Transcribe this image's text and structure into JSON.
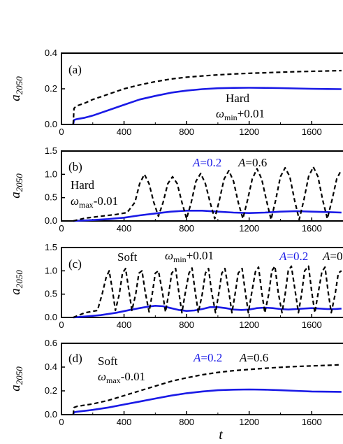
{
  "figure": {
    "x_label": "t"
  },
  "chart_data": [
    {
      "type": "line",
      "panel_label": "(a)",
      "ylabel": "a",
      "ylabel_sub": "2050",
      "xlim": [
        0,
        1800
      ],
      "ylim": [
        0,
        0.4
      ],
      "xticks": [
        "0",
        "400",
        "800",
        "1200",
        "1600"
      ],
      "yticks": [
        "0.0",
        "0.2",
        "0.4"
      ],
      "annotations": [
        "Hard",
        "ω",
        "min",
        "+0.01"
      ],
      "series": [
        {
          "name": "",
          "color": "#1a1ae6",
          "dash": "solid",
          "x": [
            75,
            80,
            90,
            100,
            150,
            200,
            300,
            400,
            500,
            600,
            700,
            800,
            900,
            1000,
            1100,
            1200,
            1300,
            1400,
            1500,
            1600,
            1700,
            1790
          ],
          "y": [
            0.0,
            0.025,
            0.028,
            0.03,
            0.038,
            0.05,
            0.08,
            0.11,
            0.14,
            0.16,
            0.178,
            0.19,
            0.198,
            0.203,
            0.205,
            0.206,
            0.205,
            0.204,
            0.202,
            0.2,
            0.199,
            0.198
          ]
        },
        {
          "name": "",
          "color": "#000000",
          "dash": "dashed",
          "x": [
            75,
            80,
            90,
            100,
            150,
            200,
            300,
            400,
            500,
            600,
            700,
            800,
            900,
            1000,
            1100,
            1200,
            1300,
            1400,
            1500,
            1600,
            1700,
            1790
          ],
          "y": [
            0.0,
            0.09,
            0.1,
            0.105,
            0.12,
            0.14,
            0.17,
            0.2,
            0.222,
            0.24,
            0.255,
            0.265,
            0.272,
            0.278,
            0.283,
            0.287,
            0.29,
            0.293,
            0.296,
            0.298,
            0.3,
            0.302
          ]
        }
      ]
    },
    {
      "type": "line",
      "panel_label": "(b)",
      "ylabel": "a",
      "ylabel_sub": "2050",
      "xlim": [
        0,
        1800
      ],
      "ylim": [
        0,
        1.5
      ],
      "xticks": [
        "0",
        "400",
        "800",
        "1200",
        "1600"
      ],
      "yticks": [
        "0.0",
        "0.5",
        "1.0",
        "1.5"
      ],
      "annotations": [
        "Hard",
        "ω",
        "max",
        "-0.01",
        "A",
        "=0.2",
        "A",
        "=0.6"
      ],
      "series": [
        {
          "name": "A=0.2",
          "color": "#1a1ae6",
          "dash": "solid",
          "x": [
            75,
            200,
            300,
            400,
            500,
            600,
            700,
            800,
            900,
            1000,
            1100,
            1200,
            1300,
            1400,
            1500,
            1600,
            1700,
            1790
          ],
          "y": [
            0.0,
            0.02,
            0.04,
            0.07,
            0.12,
            0.16,
            0.2,
            0.22,
            0.22,
            0.2,
            0.18,
            0.17,
            0.18,
            0.2,
            0.21,
            0.2,
            0.19,
            0.18
          ]
        },
        {
          "name": "A=0.6",
          "color": "#000000",
          "dash": "dashed",
          "x": [
            75,
            150,
            250,
            350,
            420,
            470,
            500,
            530,
            560,
            590,
            620,
            650,
            680,
            710,
            740,
            770,
            800,
            830,
            860,
            890,
            920,
            950,
            980,
            1010,
            1040,
            1070,
            1100,
            1130,
            1160,
            1190,
            1220,
            1250,
            1280,
            1310,
            1340,
            1370,
            1400,
            1430,
            1460,
            1490,
            1520,
            1550,
            1580,
            1610,
            1640,
            1670,
            1700,
            1730,
            1760,
            1790
          ],
          "y": [
            0.0,
            0.06,
            0.1,
            0.14,
            0.18,
            0.4,
            0.8,
            1.0,
            0.8,
            0.4,
            0.1,
            0.4,
            0.8,
            0.95,
            0.8,
            0.4,
            0.05,
            0.4,
            0.85,
            1.02,
            0.8,
            0.4,
            0.05,
            0.45,
            0.9,
            1.08,
            0.85,
            0.4,
            0.05,
            0.45,
            0.9,
            1.12,
            0.9,
            0.45,
            0.03,
            0.45,
            0.95,
            1.14,
            0.95,
            0.45,
            0.03,
            0.45,
            0.95,
            1.16,
            0.95,
            0.45,
            0.05,
            0.45,
            0.9,
            1.1
          ]
        }
      ]
    },
    {
      "type": "line",
      "panel_label": "(c)",
      "ylabel": "a",
      "ylabel_sub": "2050",
      "xlim": [
        0,
        1800
      ],
      "ylim": [
        0,
        1.5
      ],
      "xticks": [
        "0",
        "400",
        "800",
        "1200",
        "1600"
      ],
      "yticks": [
        "0.0",
        "0.5",
        "1.0",
        "1.5"
      ],
      "annotations": [
        "Soft",
        "ω",
        "min",
        "+0.01",
        "A",
        "=0.2",
        "A",
        "=0"
      ],
      "series": [
        {
          "name": "A=0.2",
          "color": "#1a1ae6",
          "dash": "solid",
          "x": [
            75,
            150,
            250,
            350,
            450,
            550,
            600,
            650,
            700,
            750,
            800,
            850,
            900,
            950,
            1000,
            1050,
            1100,
            1150,
            1200,
            1250,
            1300,
            1350,
            1400,
            1450,
            1500,
            1550,
            1600,
            1650,
            1700,
            1750,
            1790
          ],
          "y": [
            0.0,
            0.02,
            0.05,
            0.1,
            0.17,
            0.23,
            0.25,
            0.24,
            0.2,
            0.16,
            0.14,
            0.15,
            0.18,
            0.22,
            0.22,
            0.2,
            0.17,
            0.16,
            0.17,
            0.2,
            0.21,
            0.2,
            0.18,
            0.17,
            0.18,
            0.19,
            0.2,
            0.19,
            0.18,
            0.18,
            0.19
          ]
        },
        {
          "name": "A=0",
          "color": "#000000",
          "dash": "dashed",
          "x": [
            75,
            150,
            230,
            260,
            285,
            305,
            325,
            345,
            370,
            390,
            410,
            430,
            450,
            475,
            495,
            515,
            535,
            560,
            580,
            600,
            620,
            645,
            665,
            685,
            705,
            730,
            750,
            770,
            790,
            815,
            835,
            855,
            875,
            900,
            920,
            940,
            960,
            985,
            1005,
            1025,
            1045,
            1070,
            1090,
            1110,
            1130,
            1155,
            1175,
            1195,
            1215,
            1240,
            1260,
            1280,
            1300,
            1325,
            1345,
            1365,
            1385,
            1410,
            1430,
            1450,
            1470,
            1495,
            1515,
            1535,
            1555,
            1580,
            1600,
            1620,
            1640,
            1665,
            1685,
            1705,
            1725,
            1750,
            1770,
            1790
          ],
          "y": [
            0.0,
            0.1,
            0.15,
            0.5,
            0.85,
            1.0,
            0.6,
            0.15,
            0.5,
            0.95,
            1.05,
            0.6,
            0.15,
            0.5,
            0.95,
            1.0,
            0.55,
            0.12,
            0.5,
            0.95,
            1.0,
            0.55,
            0.12,
            0.5,
            0.95,
            1.05,
            0.55,
            0.1,
            0.5,
            0.95,
            1.06,
            0.55,
            0.1,
            0.5,
            0.95,
            1.05,
            0.55,
            0.1,
            0.5,
            0.95,
            1.05,
            0.55,
            0.1,
            0.5,
            0.95,
            1.05,
            0.55,
            0.1,
            0.5,
            0.98,
            1.08,
            0.55,
            0.1,
            0.5,
            1.0,
            1.1,
            0.55,
            0.1,
            0.5,
            1.0,
            1.1,
            0.55,
            0.1,
            0.5,
            1.0,
            1.1,
            0.55,
            0.1,
            0.5,
            0.98,
            1.08,
            0.55,
            0.1,
            0.5,
            0.95,
            1.0
          ]
        }
      ]
    },
    {
      "type": "line",
      "panel_label": "(d)",
      "ylabel": "a",
      "ylabel_sub": "2050",
      "xlim": [
        0,
        1800
      ],
      "ylim": [
        0,
        0.6
      ],
      "xticks": [
        "0",
        "400",
        "800",
        "1200",
        "1600"
      ],
      "yticks": [
        "0.0",
        "0.2",
        "0.4",
        "0.6"
      ],
      "annotations": [
        "Soft",
        "ω",
        "max",
        "-0.01",
        "A",
        "=0.2",
        "A",
        "=0.6"
      ],
      "series": [
        {
          "name": "A=0.2",
          "color": "#1a1ae6",
          "dash": "solid",
          "x": [
            75,
            80,
            100,
            200,
            300,
            400,
            500,
            600,
            700,
            800,
            900,
            1000,
            1100,
            1200,
            1300,
            1400,
            1500,
            1600,
            1700,
            1790
          ],
          "y": [
            0.0,
            0.02,
            0.025,
            0.04,
            0.06,
            0.085,
            0.11,
            0.135,
            0.16,
            0.18,
            0.195,
            0.205,
            0.21,
            0.212,
            0.21,
            0.205,
            0.2,
            0.195,
            0.193,
            0.192
          ]
        },
        {
          "name": "A=0.6",
          "color": "#000000",
          "dash": "dashed",
          "x": [
            75,
            80,
            100,
            200,
            300,
            400,
            500,
            600,
            700,
            800,
            900,
            1000,
            1100,
            1200,
            1300,
            1400,
            1500,
            1600,
            1700,
            1790
          ],
          "y": [
            0.0,
            0.06,
            0.07,
            0.09,
            0.12,
            0.16,
            0.2,
            0.24,
            0.28,
            0.31,
            0.335,
            0.355,
            0.37,
            0.38,
            0.39,
            0.398,
            0.405,
            0.41,
            0.415,
            0.42
          ]
        }
      ]
    }
  ]
}
